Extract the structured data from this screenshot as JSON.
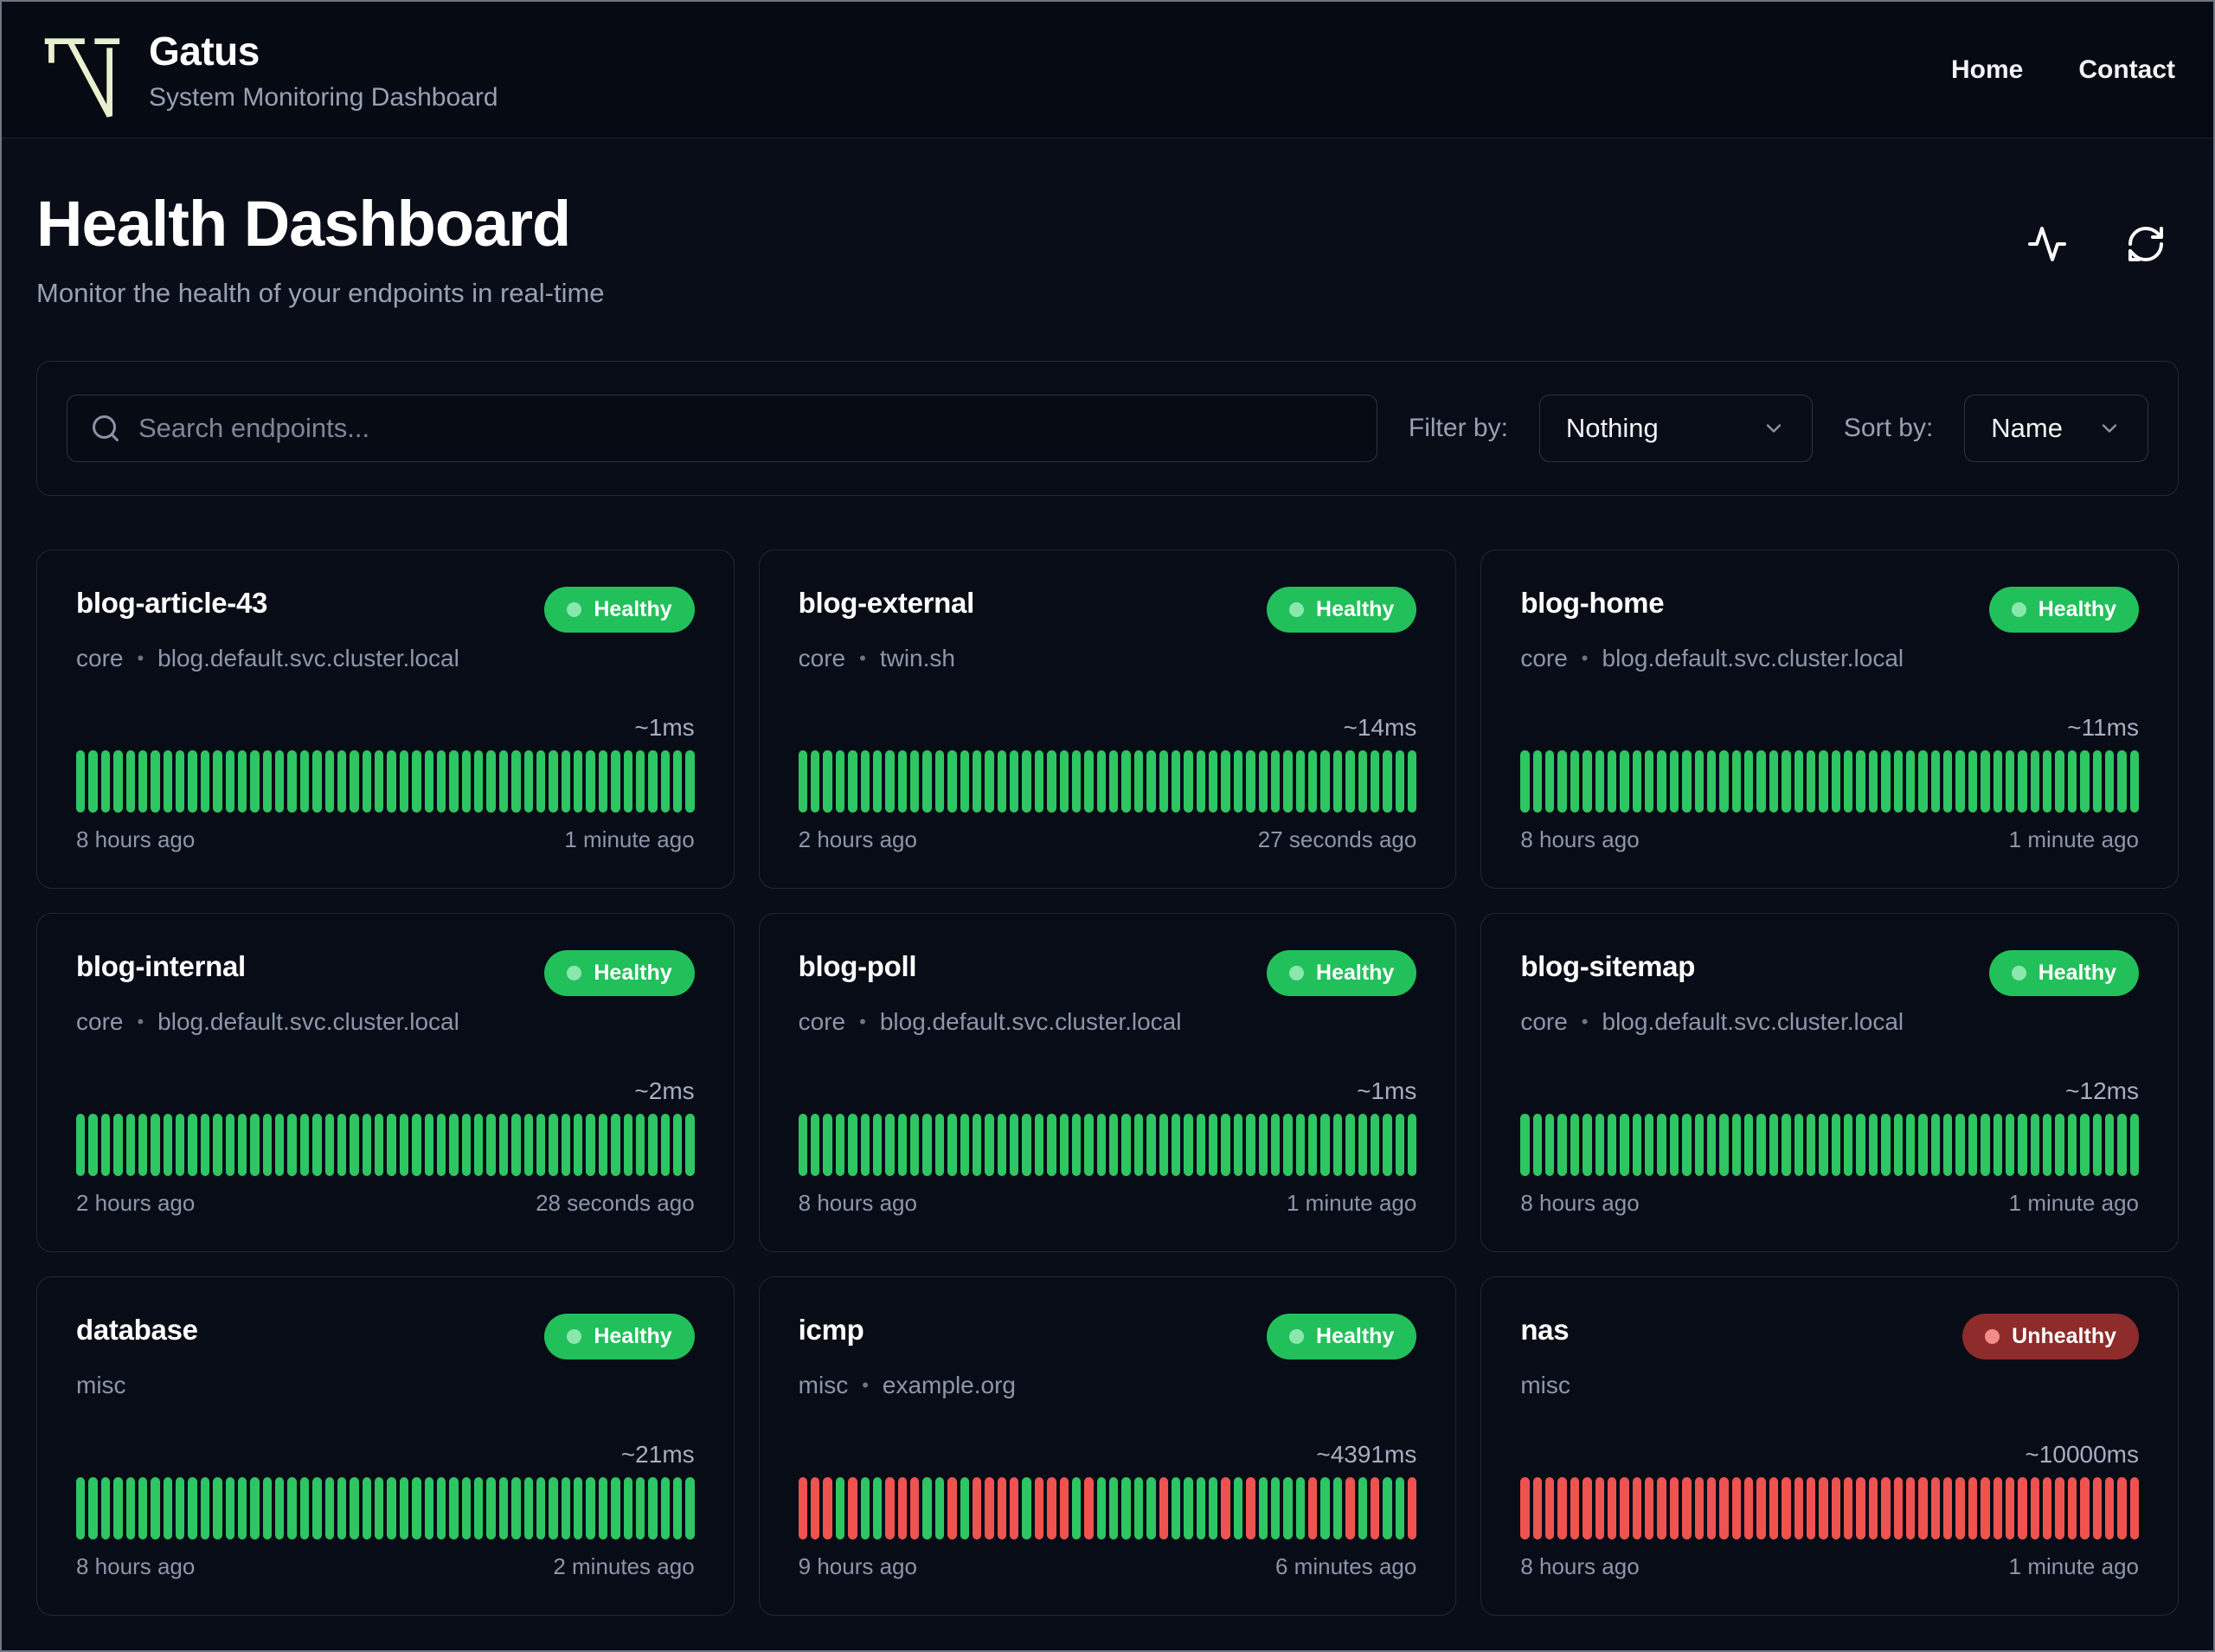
{
  "brand": {
    "name": "Gatus",
    "subtitle": "System Monitoring Dashboard",
    "logo_color": "#e9f0cf"
  },
  "nav": {
    "links": [
      {
        "label": "Home"
      },
      {
        "label": "Contact"
      }
    ]
  },
  "page": {
    "title": "Health Dashboard",
    "subtitle": "Monitor the health of your endpoints in real-time"
  },
  "toolbar": {
    "search_placeholder": "Search endpoints...",
    "filter_label": "Filter by:",
    "filter_value": "Nothing",
    "sort_label": "Sort by:",
    "sort_value": "Name"
  },
  "colors": {
    "healthy_badge": "#22c05a",
    "unhealthy_badge": "#8e2b2b",
    "bar_green": "#2ec563",
    "bar_red": "#ef5350"
  },
  "cards": [
    {
      "name": "blog-article-43",
      "group": "core",
      "host": "blog.default.svc.cluster.local",
      "status": "healthy",
      "status_label": "Healthy",
      "latency": "~1ms",
      "from": "8 hours ago",
      "to": "1 minute ago",
      "bars": "GGGGGGGGGGGGGGGGGGGGGGGGGGGGGGGGGGGGGGGGGGGGGGGGGG"
    },
    {
      "name": "blog-external",
      "group": "core",
      "host": "twin.sh",
      "status": "healthy",
      "status_label": "Healthy",
      "latency": "~14ms",
      "from": "2 hours ago",
      "to": "27 seconds ago",
      "bars": "GGGGGGGGGGGGGGGGGGGGGGGGGGGGGGGGGGGGGGGGGGGGGGGGGG"
    },
    {
      "name": "blog-home",
      "group": "core",
      "host": "blog.default.svc.cluster.local",
      "status": "healthy",
      "status_label": "Healthy",
      "latency": "~11ms",
      "from": "8 hours ago",
      "to": "1 minute ago",
      "bars": "GGGGGGGGGGGGGGGGGGGGGGGGGGGGGGGGGGGGGGGGGGGGGGGGGG"
    },
    {
      "name": "blog-internal",
      "group": "core",
      "host": "blog.default.svc.cluster.local",
      "status": "healthy",
      "status_label": "Healthy",
      "latency": "~2ms",
      "from": "2 hours ago",
      "to": "28 seconds ago",
      "bars": "GGGGGGGGGGGGGGGGGGGGGGGGGGGGGGGGGGGGGGGGGGGGGGGGGG"
    },
    {
      "name": "blog-poll",
      "group": "core",
      "host": "blog.default.svc.cluster.local",
      "status": "healthy",
      "status_label": "Healthy",
      "latency": "~1ms",
      "from": "8 hours ago",
      "to": "1 minute ago",
      "bars": "GGGGGGGGGGGGGGGGGGGGGGGGGGGGGGGGGGGGGGGGGGGGGGGGGG"
    },
    {
      "name": "blog-sitemap",
      "group": "core",
      "host": "blog.default.svc.cluster.local",
      "status": "healthy",
      "status_label": "Healthy",
      "latency": "~12ms",
      "from": "8 hours ago",
      "to": "1 minute ago",
      "bars": "GGGGGGGGGGGGGGGGGGGGGGGGGGGGGGGGGGGGGGGGGGGGGGGGGG"
    },
    {
      "name": "database",
      "group": "misc",
      "host": "",
      "status": "healthy",
      "status_label": "Healthy",
      "latency": "~21ms",
      "from": "8 hours ago",
      "to": "2 minutes ago",
      "bars": "GGGGGGGGGGGGGGGGGGGGGGGGGGGGGGGGGGGGGGGGGGGGGGGGGG"
    },
    {
      "name": "icmp",
      "group": "misc",
      "host": "example.org",
      "status": "healthy",
      "status_label": "Healthy",
      "latency": "~4391ms",
      "from": "9 hours ago",
      "to": "6 minutes ago",
      "bars": "RRRGRGGRRRGGRGRRRRGRRRGRGGGGGRGGGGRGRGGGGRGGRGRGGR"
    },
    {
      "name": "nas",
      "group": "misc",
      "host": "",
      "status": "unhealthy",
      "status_label": "Unhealthy",
      "latency": "~10000ms",
      "from": "8 hours ago",
      "to": "1 minute ago",
      "bars": "RRRRRRRRRRRRRRRRRRRRRRRRRRRRRRRRRRRRRRRRRRRRRRRRRR"
    }
  ]
}
